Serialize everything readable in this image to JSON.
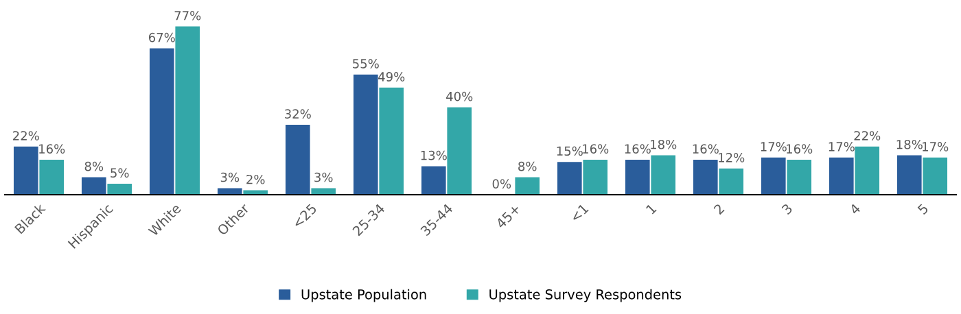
{
  "chart_data": {
    "type": "bar",
    "categories": [
      "Black",
      "Hispanic",
      "White",
      "Other",
      "<25",
      "25-34",
      "35-44",
      "45+",
      "<1",
      "1",
      "2",
      "3",
      "4",
      "5"
    ],
    "series": [
      {
        "name": "Upstate Population",
        "color": "#2a5d9b",
        "values": [
          22,
          8,
          67,
          3,
          32,
          55,
          13,
          0,
          15,
          16,
          16,
          17,
          17,
          18
        ],
        "value_labels": [
          "22%",
          "8%",
          "67%",
          "3%",
          "32%",
          "55%",
          "13%",
          "0%",
          "15%",
          "16%",
          "16%",
          "17%",
          "17%",
          "18%"
        ]
      },
      {
        "name": "Upstate Survey Respondents",
        "color": "#33a7a8",
        "values": [
          16,
          5,
          77,
          2,
          3,
          49,
          40,
          8,
          16,
          18,
          12,
          16,
          22,
          17
        ],
        "value_labels": [
          "16%",
          "5%",
          "77%",
          "2%",
          "3%",
          "49%",
          "40%",
          "8%",
          "16%",
          "18%",
          "12%",
          "16%",
          "22%",
          "17%"
        ]
      }
    ],
    "legend": "bottom",
    "grid": false
  }
}
